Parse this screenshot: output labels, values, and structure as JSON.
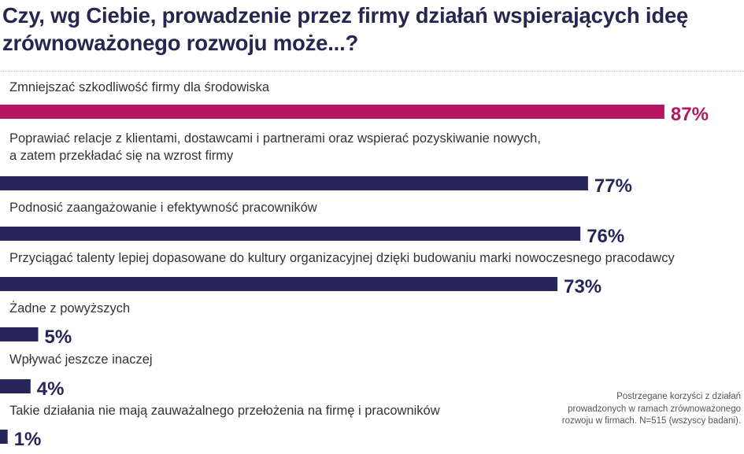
{
  "title": "Czy, wg Ciebie, prowadzenie przez firmy działań wspierających ideę zrównoważonego rozwoju może...?",
  "note": "Postrzegane korzyści z działań prowadzonych w ramach zrównoważonego rozwoju w firmach. N=515 (wszyscy badani).",
  "colors": {
    "highlight": "#b5165f",
    "default": "#26265a",
    "text": "#333333",
    "title": "#26264f"
  },
  "chart_data": {
    "type": "bar",
    "orientation": "horizontal",
    "title": "Czy, wg Ciebie, prowadzenie przez firmy działań wspierających ideę zrównoważonego rozwoju może...?",
    "xlabel": "",
    "ylabel": "",
    "xlim": [
      0,
      100
    ],
    "grid": false,
    "legend": "none",
    "categories": [
      [
        "Zmniejszać szkodliwość firmy dla środowiska"
      ],
      [
        "Poprawiać relacje z klientami, dostawcami i partnerami oraz wspierać pozyskiwanie nowych,",
        "a zatem przekładać się na wzrost firmy"
      ],
      [
        "Podnosić zaangażowanie i efektywność pracowników"
      ],
      [
        "Przyciągać talenty lepiej dopasowane do kultury organizacyjnej dzięki budowaniu marki nowoczesnego pracodawcy"
      ],
      [
        "Żadne z powyższych"
      ],
      [
        "Wpływać jeszcze inaczej"
      ],
      [
        "Takie działania nie mają zauważalnego przełożenia na firmę i pracowników"
      ]
    ],
    "values": [
      87,
      77,
      76,
      73,
      5,
      4,
      1
    ],
    "value_labels": [
      "87%",
      "77%",
      "76%",
      "73%",
      "5%",
      "4%",
      "1%"
    ],
    "highlight_index": 0
  }
}
